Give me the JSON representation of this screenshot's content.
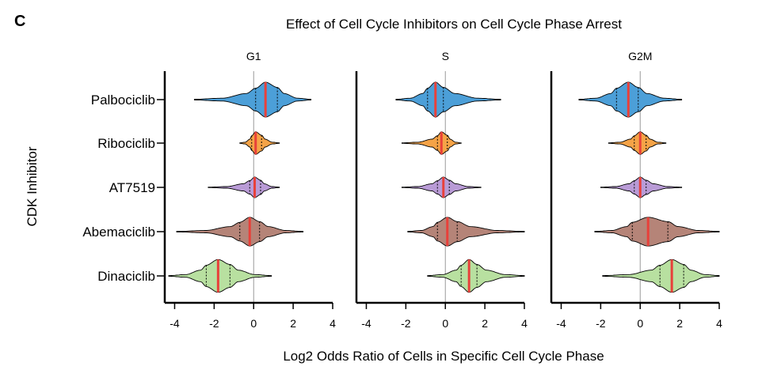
{
  "chart_data": {
    "type": "violin",
    "panel_letter": "C",
    "title": "Effect of Cell Cycle Inhibitors on Cell Cycle Phase Arrest",
    "xlabel": "Log2 Odds Ratio of Cells in Specific Cell Cycle Phase",
    "ylabel": "CDK Inhibitor",
    "xlim": [
      -4.5,
      4
    ],
    "xticks": [
      -4,
      -2,
      0,
      2,
      4
    ],
    "xtick_labels": [
      "-4",
      "-2",
      "0",
      "2",
      "4"
    ],
    "reference_line": 0,
    "median_line_color": "#e8403a",
    "categories": [
      "Palbociclib",
      "Ribociclib",
      "AT7519",
      "Abemaciclib",
      "Dinaciclib"
    ],
    "category_colors": {
      "Palbociclib": "#4c9fd8",
      "Ribociclib": "#f5a347",
      "AT7519": "#b99bd6",
      "Abemaciclib": "#b58478",
      "Dinaciclib": "#b8e0a0"
    },
    "panels": [
      {
        "phase": "G1",
        "violins": [
          {
            "inhibitor": "Palbociclib",
            "min": -3.0,
            "max": 2.9,
            "q1": 0.1,
            "median": 0.6,
            "q3": 1.2,
            "max_half_width": 0.85
          },
          {
            "inhibitor": "Ribociclib",
            "min": -0.7,
            "max": 1.3,
            "q1": -0.1,
            "median": 0.1,
            "q3": 0.4,
            "max_half_width": 0.55
          },
          {
            "inhibitor": "AT7519",
            "min": -2.3,
            "max": 1.3,
            "q1": -0.2,
            "median": 0.05,
            "q3": 0.35,
            "max_half_width": 0.5
          },
          {
            "inhibitor": "Abemaciclib",
            "min": -3.9,
            "max": 2.5,
            "q1": -0.7,
            "median": -0.2,
            "q3": 0.3,
            "max_half_width": 0.7
          },
          {
            "inhibitor": "Dinaciclib",
            "min": -4.3,
            "max": 0.9,
            "q1": -2.4,
            "median": -1.8,
            "q3": -1.2,
            "max_half_width": 0.8
          }
        ]
      },
      {
        "phase": "S",
        "violins": [
          {
            "inhibitor": "Palbociclib",
            "min": -2.5,
            "max": 2.8,
            "q1": -0.9,
            "median": -0.5,
            "q3": -0.1,
            "max_half_width": 0.85
          },
          {
            "inhibitor": "Ribociclib",
            "min": -2.2,
            "max": 0.8,
            "q1": -0.4,
            "median": -0.2,
            "q3": 0.1,
            "max_half_width": 0.55
          },
          {
            "inhibitor": "AT7519",
            "min": -2.2,
            "max": 1.8,
            "q1": -0.4,
            "median": -0.1,
            "q3": 0.2,
            "max_half_width": 0.5
          },
          {
            "inhibitor": "Abemaciclib",
            "min": -1.9,
            "max": 4.0,
            "q1": -0.4,
            "median": 0.1,
            "q3": 0.6,
            "max_half_width": 0.7
          },
          {
            "inhibitor": "Dinaciclib",
            "min": -0.9,
            "max": 4.0,
            "q1": 0.8,
            "median": 1.2,
            "q3": 1.6,
            "max_half_width": 0.8
          }
        ]
      },
      {
        "phase": "G2M",
        "violins": [
          {
            "inhibitor": "Palbociclib",
            "min": -3.1,
            "max": 2.1,
            "q1": -1.2,
            "median": -0.6,
            "q3": -0.1,
            "max_half_width": 0.85
          },
          {
            "inhibitor": "Ribociclib",
            "min": -1.6,
            "max": 1.3,
            "q1": -0.3,
            "median": 0.0,
            "q3": 0.3,
            "max_half_width": 0.55
          },
          {
            "inhibitor": "AT7519",
            "min": -2.0,
            "max": 2.1,
            "q1": -0.3,
            "median": 0.0,
            "q3": 0.3,
            "max_half_width": 0.5
          },
          {
            "inhibitor": "Abemaciclib",
            "min": -2.3,
            "max": 4.0,
            "q1": -0.4,
            "median": 0.4,
            "q3": 1.4,
            "max_half_width": 0.7
          },
          {
            "inhibitor": "Dinaciclib",
            "min": -1.9,
            "max": 4.0,
            "q1": 1.0,
            "median": 1.6,
            "q3": 2.2,
            "max_half_width": 0.8
          }
        ]
      }
    ]
  }
}
